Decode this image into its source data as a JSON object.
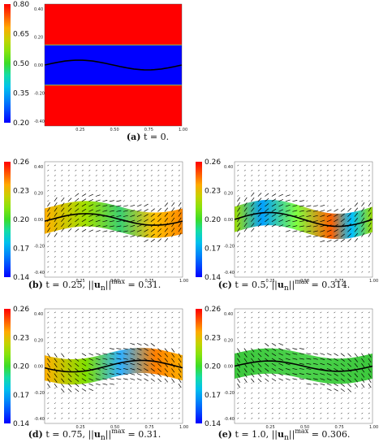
{
  "colors": {
    "high": "#ff0000",
    "low": "#0000ff",
    "interface": "#000000",
    "arrow": "#000000"
  },
  "panels": [
    {
      "id": "a",
      "label": "(a)",
      "caption_text": "t = 0.",
      "colorbar_ticks": [
        "0.80",
        "0.65",
        "0.50",
        "0.35",
        "0.20"
      ],
      "x_ticks": [
        "0.25",
        "0.50",
        "0.75",
        "1.00"
      ],
      "y_ticks": [
        "0.40",
        "0.20",
        "0.00",
        "-0.20",
        "-0.40"
      ]
    },
    {
      "id": "b",
      "label": "(b)",
      "caption_text": "t = 0.25, ||",
      "caption_u": "u",
      "caption_sub": "n",
      "caption_close": "||",
      "caption_sup": "max",
      "caption_value": " = 0.31.",
      "colorbar_ticks": [
        "0.26",
        "0.23",
        "0.20",
        "0.17",
        "0.14"
      ],
      "x_ticks": [
        "0.25",
        "0.50",
        "0.75",
        "1.00"
      ],
      "y_ticks": [
        "0.40",
        "0.20",
        "0.00",
        "-0.20",
        "-0.40"
      ]
    },
    {
      "id": "c",
      "label": "(c)",
      "caption_text": "t = 0.5, ||",
      "caption_u": "u",
      "caption_sub": "n",
      "caption_close": "||",
      "caption_sup": "max",
      "caption_value": " = 0.314.",
      "colorbar_ticks": [
        "0.26",
        "0.23",
        "0.20",
        "0.17",
        "0.14"
      ],
      "x_ticks": [
        "0.25",
        "0.50",
        "0.75",
        "1.00"
      ],
      "y_ticks": [
        "0.40",
        "0.20",
        "0.00",
        "-0.20",
        "-0.40"
      ]
    },
    {
      "id": "d",
      "label": "(d)",
      "caption_text": "t = 0.75, ||",
      "caption_u": "u",
      "caption_sub": "n",
      "caption_close": "||",
      "caption_sup": "max",
      "caption_value": " = 0.31.",
      "colorbar_ticks": [
        "0.26",
        "0.23",
        "0.20",
        "0.17",
        "0.14"
      ],
      "x_ticks": [
        "0.25",
        "0.50",
        "0.75",
        "1.00"
      ],
      "y_ticks": [
        "0.40",
        "0.20",
        "0.00",
        "-0.20",
        "-0.40"
      ]
    },
    {
      "id": "e",
      "label": "(e)",
      "caption_text": "t = 1.0, ||",
      "caption_u": "u",
      "caption_sub": "n",
      "caption_close": "||",
      "caption_sup": "max",
      "caption_value": " = 0.306.",
      "colorbar_ticks": [
        "0.26",
        "0.23",
        "0.20",
        "0.17",
        "0.14"
      ],
      "x_ticks": [
        "0.25",
        "0.50",
        "0.75",
        "1.00"
      ],
      "y_ticks": [
        "0.40",
        "0.20",
        "0.00",
        "-0.20",
        "-0.40"
      ]
    }
  ]
}
